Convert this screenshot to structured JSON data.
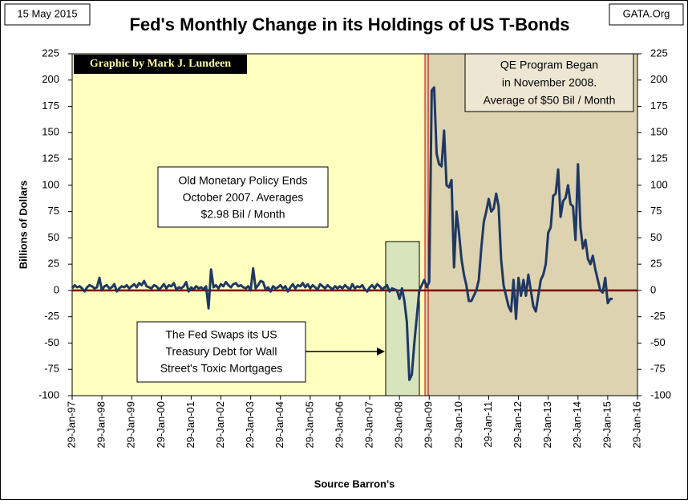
{
  "chart_data": {
    "type": "line",
    "title": "Fed's Monthly Change in its Holdings of US T-Bonds",
    "date": "15 May 2015",
    "source_site": "GATA.Org",
    "credit": "Graphic by Mark J. Lundeen",
    "y_label": "Billions  of Dollars",
    "x_label": "Source Barron's",
    "annotations": [
      [
        "QE Program Began",
        "in November 2008.",
        "Average of $50 Bil / Month"
      ],
      [
        "Old Monetary Policy Ends",
        "October 2007.  Averages",
        "$2.98 Bil / Month"
      ],
      [
        "The Fed Swaps its US",
        "Treasury Debt for Wall",
        "Street's Toxic Mortgages"
      ]
    ],
    "ylim": [
      -100,
      225
    ],
    "yticks": [
      -100,
      -75,
      -50,
      -25,
      0,
      25,
      50,
      75,
      100,
      125,
      150,
      175,
      200,
      225
    ],
    "xlim": [
      "1997-01",
      "2016-01"
    ],
    "xticks": [
      {
        "value": "1997-01",
        "label": "29-Jan-97"
      },
      {
        "value": "1998-01",
        "label": "29-Jan-98"
      },
      {
        "value": "1999-01",
        "label": "29-Jan-99"
      },
      {
        "value": "2000-01",
        "label": "29-Jan-00"
      },
      {
        "value": "2001-01",
        "label": "29-Jan-01"
      },
      {
        "value": "2002-01",
        "label": "29-Jan-02"
      },
      {
        "value": "2003-01",
        "label": "29-Jan-03"
      },
      {
        "value": "2004-01",
        "label": "29-Jan-04"
      },
      {
        "value": "2005-01",
        "label": "29-Jan-05"
      },
      {
        "value": "2006-01",
        "label": "29-Jan-06"
      },
      {
        "value": "2007-01",
        "label": "29-Jan-07"
      },
      {
        "value": "2008-01",
        "label": "29-Jan-08"
      },
      {
        "value": "2009-01",
        "label": "29-Jan-09"
      },
      {
        "value": "2010-01",
        "label": "29-Jan-10"
      },
      {
        "value": "2011-01",
        "label": "29-Jan-11"
      },
      {
        "value": "2012-01",
        "label": "29-Jan-12"
      },
      {
        "value": "2013-01",
        "label": "29-Jan-13"
      },
      {
        "value": "2014-01",
        "label": "29-Jan-14"
      },
      {
        "value": "2015-01",
        "label": "29-Jan-15"
      },
      {
        "value": "2016-01",
        "label": "29-Jan-16"
      }
    ],
    "x": [
      "1997-01",
      "1997-02",
      "1997-03",
      "1997-04",
      "1997-05",
      "1997-06",
      "1997-07",
      "1997-08",
      "1997-09",
      "1997-10",
      "1997-11",
      "1997-12",
      "1998-01",
      "1998-02",
      "1998-03",
      "1998-04",
      "1998-05",
      "1998-06",
      "1998-07",
      "1998-08",
      "1998-09",
      "1998-10",
      "1998-11",
      "1998-12",
      "1999-01",
      "1999-02",
      "1999-03",
      "1999-04",
      "1999-05",
      "1999-06",
      "1999-07",
      "1999-08",
      "1999-09",
      "1999-10",
      "1999-11",
      "1999-12",
      "2000-01",
      "2000-02",
      "2000-03",
      "2000-04",
      "2000-05",
      "2000-06",
      "2000-07",
      "2000-08",
      "2000-09",
      "2000-10",
      "2000-11",
      "2000-12",
      "2001-01",
      "2001-02",
      "2001-03",
      "2001-04",
      "2001-05",
      "2001-06",
      "2001-07",
      "2001-08",
      "2001-09",
      "2001-10",
      "2001-11",
      "2001-12",
      "2002-01",
      "2002-02",
      "2002-03",
      "2002-04",
      "2002-05",
      "2002-06",
      "2002-07",
      "2002-08",
      "2002-09",
      "2002-10",
      "2002-11",
      "2002-12",
      "2003-01",
      "2003-02",
      "2003-03",
      "2003-04",
      "2003-05",
      "2003-06",
      "2003-07",
      "2003-08",
      "2003-09",
      "2003-10",
      "2003-11",
      "2003-12",
      "2004-01",
      "2004-02",
      "2004-03",
      "2004-04",
      "2004-05",
      "2004-06",
      "2004-07",
      "2004-08",
      "2004-09",
      "2004-10",
      "2004-11",
      "2004-12",
      "2005-01",
      "2005-02",
      "2005-03",
      "2005-04",
      "2005-05",
      "2005-06",
      "2005-07",
      "2005-08",
      "2005-09",
      "2005-10",
      "2005-11",
      "2005-12",
      "2006-01",
      "2006-02",
      "2006-03",
      "2006-04",
      "2006-05",
      "2006-06",
      "2006-07",
      "2006-08",
      "2006-09",
      "2006-10",
      "2006-11",
      "2006-12",
      "2007-01",
      "2007-02",
      "2007-03",
      "2007-04",
      "2007-05",
      "2007-06",
      "2007-07",
      "2007-08",
      "2007-09",
      "2007-10",
      "2007-11",
      "2007-12",
      "2008-01",
      "2008-02",
      "2008-03",
      "2008-04",
      "2008-05",
      "2008-06",
      "2008-07",
      "2008-08",
      "2008-09",
      "2008-10",
      "2008-11",
      "2008-12",
      "2009-01",
      "2009-02",
      "2009-03",
      "2009-04",
      "2009-05",
      "2009-06",
      "2009-07",
      "2009-08",
      "2009-09",
      "2009-10",
      "2009-11",
      "2009-12",
      "2010-01",
      "2010-02",
      "2010-03",
      "2010-04",
      "2010-05",
      "2010-06",
      "2010-07",
      "2010-08",
      "2010-09",
      "2010-10",
      "2010-11",
      "2010-12",
      "2011-01",
      "2011-02",
      "2011-03",
      "2011-04",
      "2011-05",
      "2011-06",
      "2011-07",
      "2011-08",
      "2011-09",
      "2011-10",
      "2011-11",
      "2011-12",
      "2012-01",
      "2012-02",
      "2012-03",
      "2012-04",
      "2012-05",
      "2012-06",
      "2012-07",
      "2012-08",
      "2012-09",
      "2012-10",
      "2012-11",
      "2012-12",
      "2013-01",
      "2013-02",
      "2013-03",
      "2013-04",
      "2013-05",
      "2013-06",
      "2013-07",
      "2013-08",
      "2013-09",
      "2013-10",
      "2013-11",
      "2013-12",
      "2014-01",
      "2014-02",
      "2014-03",
      "2014-04",
      "2014-05",
      "2014-06",
      "2014-07",
      "2014-08",
      "2014-09",
      "2014-10",
      "2014-11",
      "2014-12",
      "2015-01",
      "2015-02",
      "2015-03"
    ],
    "series": [
      {
        "name": "Monthly change",
        "color": "#1f3864",
        "values": [
          2,
          5,
          3,
          4,
          2,
          -1,
          3,
          5,
          4,
          2,
          3,
          12,
          0,
          4,
          5,
          2,
          3,
          6,
          -1,
          2,
          4,
          3,
          5,
          2,
          4,
          6,
          3,
          7,
          5,
          9,
          4,
          3,
          2,
          5,
          4,
          1,
          3,
          6,
          2,
          5,
          4,
          7,
          1,
          3,
          2,
          4,
          8,
          -1,
          3,
          1,
          4,
          2,
          3,
          1,
          4,
          -17,
          20,
          3,
          5,
          2,
          6,
          4,
          8,
          5,
          3,
          6,
          7,
          4,
          5,
          3,
          2,
          4,
          0,
          21,
          2,
          5,
          9,
          8,
          1,
          3,
          -1,
          4,
          2,
          3,
          5,
          2,
          4,
          -1,
          3,
          6,
          2,
          5,
          4,
          7,
          3,
          6,
          2,
          5,
          3,
          1,
          6,
          4,
          2,
          5,
          3,
          1,
          4,
          2,
          4,
          2,
          5,
          3,
          1,
          6,
          2,
          4,
          3,
          5,
          1,
          -1,
          3,
          5,
          2,
          6,
          4,
          1,
          3,
          5,
          -1,
          2,
          1,
          0,
          -8,
          2,
          -10,
          -30,
          -85,
          -80,
          -50,
          -25,
          0,
          5,
          10,
          3,
          8,
          190,
          193,
          130,
          120,
          118,
          152,
          100,
          98,
          105,
          22,
          75,
          55,
          30,
          15,
          5,
          -10,
          -10,
          -5,
          0,
          10,
          40,
          65,
          75,
          87,
          75,
          78,
          92,
          80,
          30,
          5,
          -5,
          -15,
          -20,
          10,
          -27,
          12,
          -5,
          10,
          -5,
          15,
          0,
          -15,
          -20,
          -5,
          10,
          15,
          25,
          55,
          60,
          90,
          92,
          115,
          70,
          85,
          88,
          100,
          82,
          80,
          48,
          120,
          60,
          40,
          48,
          30,
          25,
          33,
          20,
          10,
          0,
          -2,
          12,
          -12,
          -8,
          -8
        ]
      }
    ]
  }
}
